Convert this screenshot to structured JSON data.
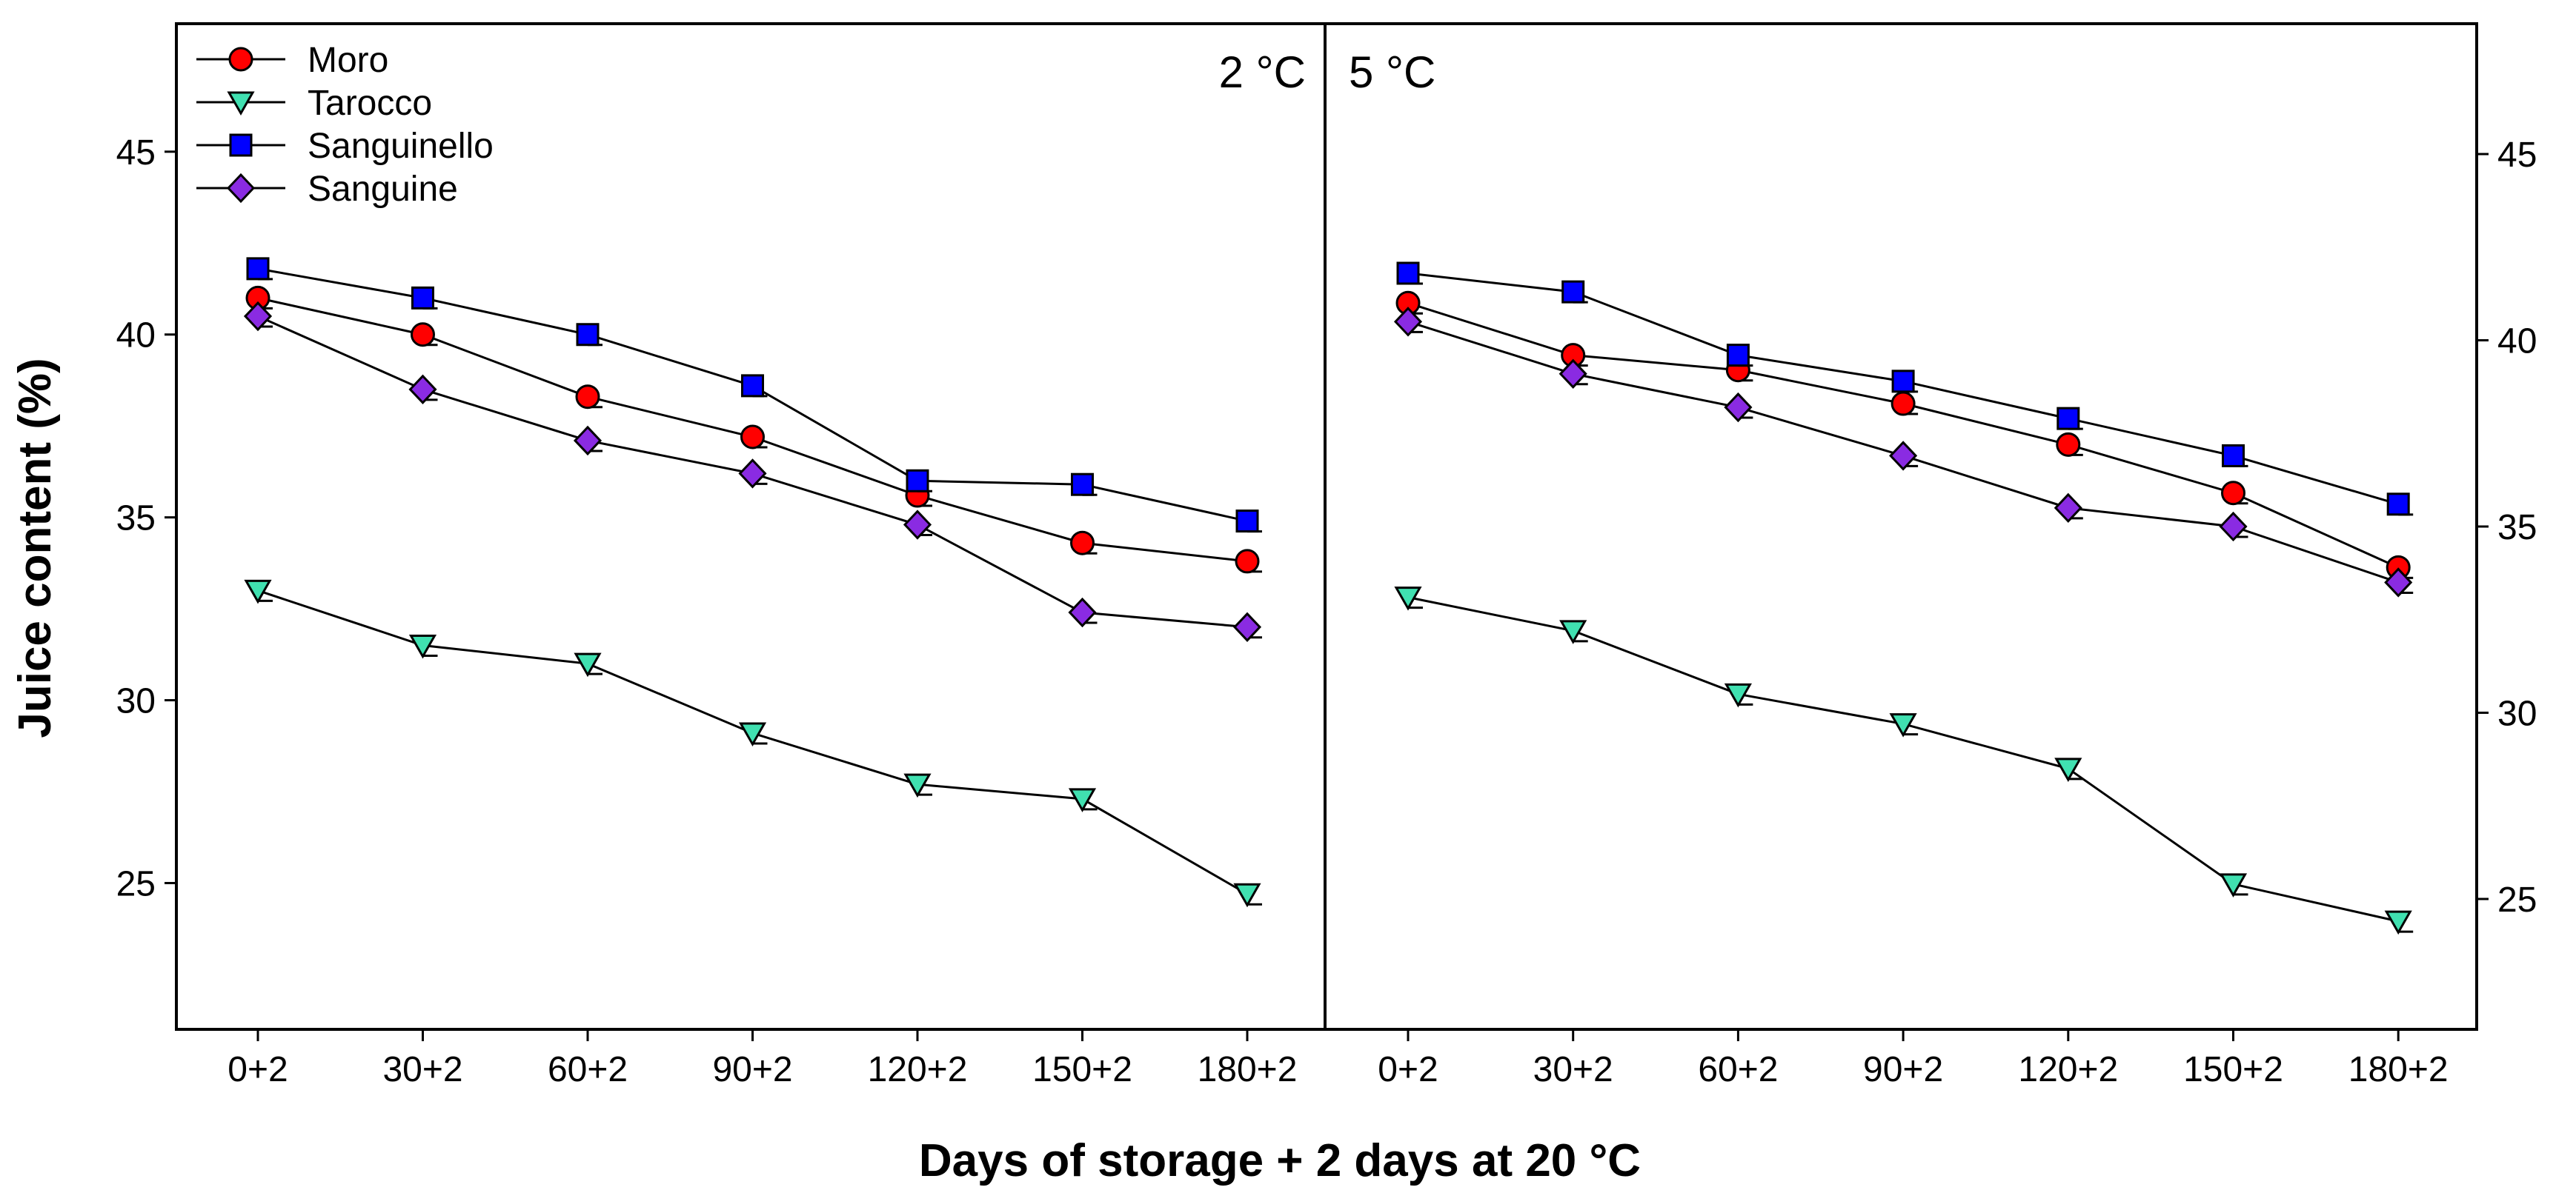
{
  "chart_data": {
    "type": "line",
    "title": "",
    "xlabel": "Days of storage + 2 days at 20 °C",
    "ylabel": "Juice content (%)",
    "categories": [
      "0+2",
      "30+2",
      "60+2",
      "90+2",
      "120+2",
      "150+2",
      "180+2"
    ],
    "legend": {
      "placement": "top-left"
    },
    "series_styles": [
      {
        "name": "Moro",
        "marker": "circle",
        "color": "#ff0000"
      },
      {
        "name": "Tarocco",
        "marker": "triangle-down",
        "color": "#40e0b0"
      },
      {
        "name": "Sanguinello",
        "marker": "square",
        "color": "#0000ff"
      },
      {
        "name": "Sanguine",
        "marker": "diamond",
        "color": "#8a2be2"
      }
    ],
    "panels": [
      {
        "label": "2 °C",
        "ylim": [
          21,
          48.5
        ],
        "yticks": [
          25,
          30,
          35,
          40,
          45
        ],
        "series": [
          {
            "name": "Moro",
            "values": [
              41.0,
              40.0,
              38.3,
              37.2,
              35.6,
              34.3,
              33.8
            ]
          },
          {
            "name": "Tarocco",
            "values": [
              33.0,
              31.5,
              31.0,
              29.1,
              27.7,
              27.3,
              24.7
            ]
          },
          {
            "name": "Sanguinello",
            "values": [
              41.8,
              41.0,
              40.0,
              38.6,
              36.0,
              35.9,
              34.9
            ]
          },
          {
            "name": "Sanguine",
            "values": [
              40.5,
              38.5,
              37.1,
              36.2,
              34.8,
              32.4,
              32.0
            ]
          }
        ]
      },
      {
        "label": "5 °C",
        "ylim": [
          21.5,
          48.5
        ],
        "yticks": [
          25,
          30,
          35,
          40,
          45
        ],
        "series": [
          {
            "name": "Moro",
            "values": [
              41.0,
              39.6,
              39.2,
              38.3,
              37.2,
              35.9,
              33.9
            ]
          },
          {
            "name": "Tarocco",
            "values": [
              33.1,
              32.2,
              30.5,
              29.7,
              28.5,
              25.4,
              24.4
            ]
          },
          {
            "name": "Sanguinello",
            "values": [
              41.8,
              41.3,
              39.6,
              38.9,
              37.9,
              36.9,
              35.6
            ]
          },
          {
            "name": "Sanguine",
            "values": [
              40.5,
              39.1,
              38.2,
              36.9,
              35.5,
              35.0,
              33.5
            ]
          }
        ]
      }
    ]
  }
}
